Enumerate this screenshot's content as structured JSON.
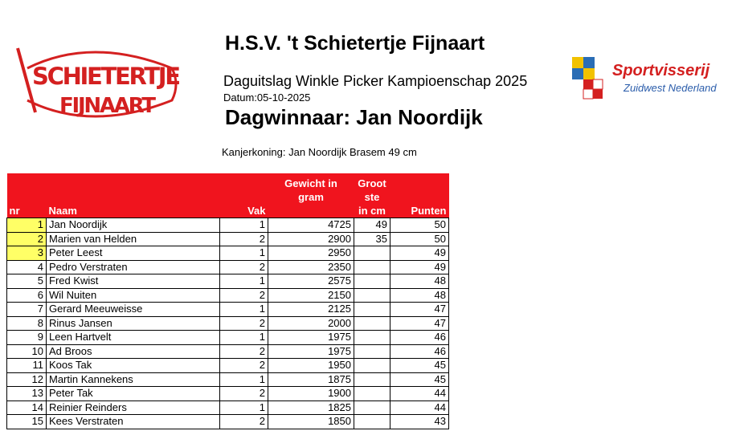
{
  "header": {
    "title": "H.S.V. 't Schietertje Fijnaart",
    "subtitle": "Daguitslag Winkle Picker Kampioenschap 2025",
    "date": "Datum:05-10-2025",
    "winner": "Dagwinnaar: Jan Noordijk",
    "kanjer": "Kanjerkoning: Jan Noordijk Brasem 49 cm"
  },
  "logo_left": {
    "line1": "SCHIETERTJE",
    "line2": "FIJNAART"
  },
  "logo_right": {
    "name": "Sportvisserij",
    "region": "Zuidwest Nederland"
  },
  "table": {
    "header": [
      [
        "nr"
      ],
      [
        "Naam"
      ],
      [
        "Vak"
      ],
      [
        "Gewicht in",
        "gram"
      ],
      [
        "Groot",
        "ste",
        "in cm"
      ],
      [
        "Punten"
      ]
    ],
    "rows": [
      [
        1,
        "Jan Noordijk",
        1,
        4725,
        49,
        50
      ],
      [
        2,
        "Marien van Helden",
        2,
        2900,
        35,
        50
      ],
      [
        3,
        "Peter Leest",
        1,
        2950,
        null,
        49
      ],
      [
        4,
        "Pedro Verstraten",
        2,
        2350,
        null,
        49
      ],
      [
        5,
        "Fred Kwist",
        1,
        2575,
        null,
        48
      ],
      [
        6,
        "Wil Nuiten",
        2,
        2150,
        null,
        48
      ],
      [
        7,
        "Gerard Meeuweisse",
        1,
        2125,
        null,
        47
      ],
      [
        8,
        "Rinus Jansen",
        2,
        2000,
        null,
        47
      ],
      [
        9,
        "Leen Hartvelt",
        1,
        1975,
        null,
        46
      ],
      [
        10,
        "Ad Broos",
        2,
        1975,
        null,
        46
      ],
      [
        11,
        "Koos Tak",
        2,
        1950,
        null,
        45
      ],
      [
        12,
        "Martin Kannekens",
        1,
        1875,
        null,
        45
      ],
      [
        13,
        "Peter Tak",
        2,
        1900,
        null,
        44
      ],
      [
        14,
        "Reinier Reinders",
        1,
        1825,
        null,
        44
      ],
      [
        15,
        "Kees Verstraten",
        2,
        1850,
        null,
        43
      ]
    ]
  }
}
